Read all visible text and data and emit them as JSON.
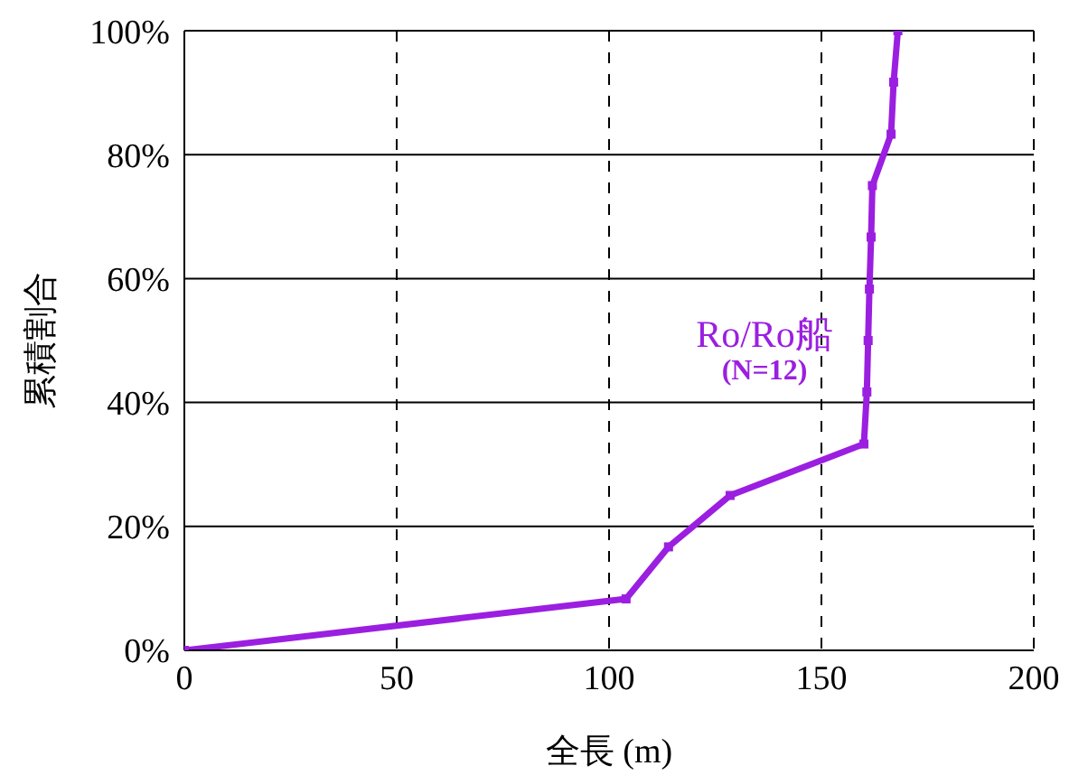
{
  "chart_data": {
    "type": "line",
    "xlabel": "全長 (m)",
    "ylabel": "累積割合",
    "series": [
      {
        "name": "Ro/Ro船",
        "color": "#9b1fe0",
        "x": [
          0,
          104,
          114,
          128.5,
          160,
          160.7,
          161,
          161.3,
          161.7,
          162,
          166.4,
          167,
          168
        ],
        "values": [
          0,
          8.3,
          16.7,
          25,
          33.3,
          41.7,
          50,
          58.3,
          66.7,
          75,
          83.3,
          91.7,
          100
        ]
      }
    ],
    "annotations": [
      "(N=12)"
    ],
    "xlim": [
      0,
      200
    ],
    "xticks": [
      0,
      50,
      100,
      150,
      200
    ],
    "ylim": [
      0,
      100
    ],
    "yticks": [
      {
        "value": 0,
        "label": "0%"
      },
      {
        "value": 20,
        "label": "20%"
      },
      {
        "value": 40,
        "label": "40%"
      },
      {
        "value": 60,
        "label": "60%"
      },
      {
        "value": 80,
        "label": "80%"
      },
      {
        "value": 100,
        "label": "100%"
      }
    ],
    "grid": true,
    "marker": "square",
    "line_style": "solid"
  }
}
